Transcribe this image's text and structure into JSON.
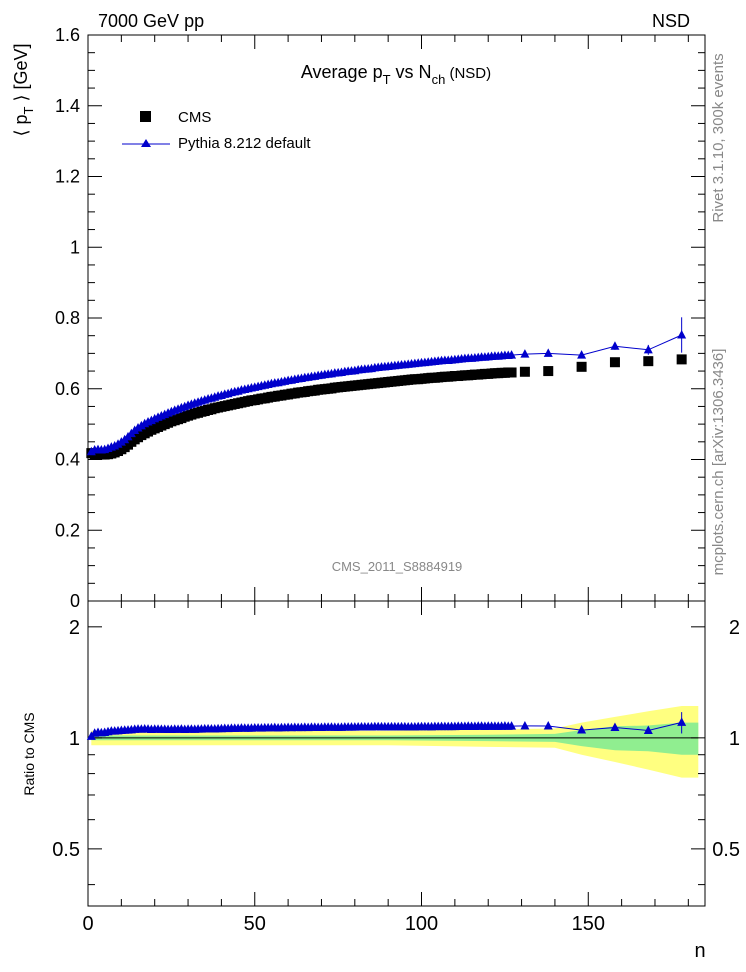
{
  "header": {
    "left": "7000 GeV pp",
    "right": "NSD"
  },
  "side_text": {
    "rivet": "Rivet 3.1.10,  300k events",
    "mcplots": "mcplots.cern.ch [arXiv:1306.3436]"
  },
  "chart_data": [
    {
      "type": "scatter",
      "title_parts": {
        "a": "Average p",
        "b": "T",
        "c": " vs N",
        "d": "ch",
        "e": " (NSD)"
      },
      "ylabel_parts": {
        "a": "⟨ p",
        "b": "T",
        "c": " ⟩ [GeV]"
      },
      "analysis_label": "CMS_2011_S8884919",
      "xlim": [
        0,
        185
      ],
      "ylim": [
        0,
        1.6
      ],
      "xticks": [
        0,
        50,
        100,
        150
      ],
      "yticks": [
        0,
        0.2,
        0.4,
        0.6,
        0.8,
        1,
        1.2,
        1.4,
        1.6
      ],
      "ytick_labels": [
        "0",
        "0.2",
        "0.4",
        "0.6",
        "0.8",
        "1",
        "1.2",
        "1.4",
        "1.6"
      ],
      "legend_position": "top-left",
      "legend": [
        "CMS",
        "Pythia 8.212 default"
      ],
      "series": [
        {
          "name": "CMS",
          "marker": "square",
          "color": "#000000",
          "x": [
            1,
            2,
            3,
            4,
            5,
            6,
            7,
            8,
            9,
            10,
            11,
            12,
            13,
            14,
            15,
            16,
            17,
            18,
            19,
            20,
            21,
            22,
            23,
            24,
            25,
            26,
            27,
            28,
            29,
            30,
            31,
            32,
            33,
            34,
            35,
            36,
            37,
            38,
            39,
            40,
            41,
            42,
            43,
            44,
            45,
            46,
            47,
            48,
            49,
            50,
            51,
            52,
            53,
            54,
            55,
            56,
            57,
            58,
            59,
            60,
            61,
            62,
            63,
            64,
            65,
            66,
            67,
            68,
            69,
            70,
            71,
            72,
            73,
            74,
            75,
            76,
            77,
            78,
            79,
            80,
            81,
            82,
            83,
            84,
            85,
            86,
            87,
            88,
            89,
            90,
            91,
            92,
            93,
            94,
            95,
            96,
            97,
            98,
            99,
            100,
            101,
            102,
            103,
            104,
            105,
            106,
            107,
            108,
            109,
            110,
            111,
            112,
            113,
            114,
            115,
            116,
            117,
            118,
            119,
            120,
            121,
            122,
            123,
            124,
            125,
            126,
            127,
            131,
            138,
            148,
            158,
            168,
            178
          ],
          "y": [
            0.418,
            0.415,
            0.414,
            0.414,
            0.414,
            0.415,
            0.417,
            0.42,
            0.424,
            0.429,
            0.435,
            0.442,
            0.45,
            0.457,
            0.463,
            0.469,
            0.474,
            0.479,
            0.484,
            0.488,
            0.492,
            0.496,
            0.5,
            0.504,
            0.508,
            0.511,
            0.514,
            0.517,
            0.521,
            0.524,
            0.527,
            0.53,
            0.532,
            0.535,
            0.537,
            0.54,
            0.542,
            0.545,
            0.547,
            0.549,
            0.551,
            0.553,
            0.555,
            0.557,
            0.559,
            0.561,
            0.563,
            0.565,
            0.567,
            0.568,
            0.57,
            0.572,
            0.573,
            0.575,
            0.577,
            0.578,
            0.58,
            0.581,
            0.583,
            0.584,
            0.586,
            0.587,
            0.589,
            0.59,
            0.591,
            0.593,
            0.594,
            0.595,
            0.597,
            0.598,
            0.599,
            0.6,
            0.601,
            0.603,
            0.604,
            0.605,
            0.606,
            0.607,
            0.608,
            0.609,
            0.61,
            0.611,
            0.612,
            0.613,
            0.614,
            0.615,
            0.616,
            0.617,
            0.618,
            0.619,
            0.62,
            0.621,
            0.622,
            0.623,
            0.624,
            0.625,
            0.626,
            0.627,
            0.627,
            0.628,
            0.629,
            0.63,
            0.631,
            0.631,
            0.632,
            0.633,
            0.634,
            0.634,
            0.635,
            0.636,
            0.636,
            0.637,
            0.638,
            0.638,
            0.639,
            0.64,
            0.64,
            0.641,
            0.642,
            0.642,
            0.643,
            0.644,
            0.644,
            0.645,
            0.645,
            0.646,
            0.646,
            0.648,
            0.65,
            0.662,
            0.675,
            0.678,
            0.683
          ]
        },
        {
          "name": "Pythia 8.212 default",
          "marker": "triangle",
          "color": "#0000cc",
          "x": [
            1,
            2,
            3,
            4,
            5,
            6,
            7,
            8,
            9,
            10,
            11,
            12,
            13,
            14,
            15,
            16,
            17,
            18,
            19,
            20,
            21,
            22,
            23,
            24,
            25,
            26,
            27,
            28,
            29,
            30,
            31,
            32,
            33,
            34,
            35,
            36,
            37,
            38,
            39,
            40,
            41,
            42,
            43,
            44,
            45,
            46,
            47,
            48,
            49,
            50,
            51,
            52,
            53,
            54,
            55,
            56,
            57,
            58,
            59,
            60,
            61,
            62,
            63,
            64,
            65,
            66,
            67,
            68,
            69,
            70,
            71,
            72,
            73,
            74,
            75,
            76,
            77,
            78,
            79,
            80,
            81,
            82,
            83,
            84,
            85,
            86,
            87,
            88,
            89,
            90,
            91,
            92,
            93,
            94,
            95,
            96,
            97,
            98,
            99,
            100,
            101,
            102,
            103,
            104,
            105,
            106,
            107,
            108,
            109,
            110,
            111,
            112,
            113,
            114,
            115,
            116,
            117,
            118,
            119,
            120,
            121,
            122,
            123,
            124,
            125,
            126,
            127,
            131,
            138,
            148,
            158,
            168,
            178
          ],
          "y": [
            0.422,
            0.427,
            0.428,
            0.427,
            0.428,
            0.431,
            0.435,
            0.438,
            0.443,
            0.449,
            0.456,
            0.464,
            0.473,
            0.482,
            0.489,
            0.495,
            0.501,
            0.506,
            0.51,
            0.515,
            0.519,
            0.523,
            0.527,
            0.531,
            0.535,
            0.539,
            0.542,
            0.546,
            0.549,
            0.553,
            0.556,
            0.559,
            0.562,
            0.565,
            0.568,
            0.571,
            0.573,
            0.576,
            0.579,
            0.581,
            0.584,
            0.586,
            0.589,
            0.591,
            0.593,
            0.596,
            0.598,
            0.6,
            0.602,
            0.604,
            0.606,
            0.608,
            0.61,
            0.612,
            0.614,
            0.616,
            0.617,
            0.619,
            0.621,
            0.623,
            0.624,
            0.626,
            0.628,
            0.629,
            0.631,
            0.632,
            0.634,
            0.635,
            0.637,
            0.638,
            0.64,
            0.641,
            0.642,
            0.644,
            0.645,
            0.646,
            0.648,
            0.649,
            0.65,
            0.651,
            0.653,
            0.654,
            0.655,
            0.656,
            0.657,
            0.659,
            0.66,
            0.661,
            0.662,
            0.663,
            0.664,
            0.665,
            0.666,
            0.667,
            0.668,
            0.669,
            0.67,
            0.671,
            0.672,
            0.673,
            0.674,
            0.675,
            0.676,
            0.677,
            0.678,
            0.679,
            0.68,
            0.68,
            0.681,
            0.682,
            0.683,
            0.684,
            0.685,
            0.686,
            0.686,
            0.687,
            0.688,
            0.689,
            0.689,
            0.69,
            0.691,
            0.692,
            0.692,
            0.693,
            0.694,
            0.694,
            0.695,
            0.698,
            0.7,
            0.695,
            0.72,
            0.71,
            0.752
          ],
          "yerr": [
            0.003,
            0.003,
            0.003,
            0.003,
            0.003,
            0.003,
            0.003,
            0.003,
            0.003,
            0.003,
            0.003,
            0.003,
            0.003,
            0.003,
            0.003,
            0.003,
            0.003,
            0.003,
            0.003,
            0.003,
            0.003,
            0.003,
            0.003,
            0.003,
            0.003,
            0.003,
            0.003,
            0.003,
            0.003,
            0.003,
            0.003,
            0.003,
            0.003,
            0.003,
            0.003,
            0.003,
            0.003,
            0.003,
            0.003,
            0.003,
            0.003,
            0.003,
            0.003,
            0.003,
            0.003,
            0.003,
            0.003,
            0.003,
            0.003,
            0.003,
            0.003,
            0.003,
            0.003,
            0.003,
            0.003,
            0.003,
            0.003,
            0.003,
            0.003,
            0.003,
            0.003,
            0.003,
            0.003,
            0.003,
            0.003,
            0.003,
            0.003,
            0.003,
            0.003,
            0.003,
            0.003,
            0.003,
            0.003,
            0.003,
            0.003,
            0.003,
            0.003,
            0.003,
            0.003,
            0.003,
            0.003,
            0.003,
            0.003,
            0.003,
            0.003,
            0.003,
            0.003,
            0.003,
            0.003,
            0.003,
            0.003,
            0.003,
            0.003,
            0.003,
            0.003,
            0.003,
            0.003,
            0.003,
            0.003,
            0.003,
            0.003,
            0.003,
            0.003,
            0.003,
            0.003,
            0.003,
            0.003,
            0.003,
            0.003,
            0.003,
            0.003,
            0.003,
            0.003,
            0.003,
            0.003,
            0.003,
            0.003,
            0.003,
            0.003,
            0.003,
            0.003,
            0.003,
            0.003,
            0.003,
            0.003,
            0.003,
            0.003,
            0.004,
            0.005,
            0.006,
            0.01,
            0.014,
            0.05
          ]
        }
      ]
    },
    {
      "type": "scatter",
      "ylabel": "Ratio to CMS",
      "xlabel": "n",
      "xlim": [
        0,
        185
      ],
      "ylim": [
        0.35,
        2.35
      ],
      "log_y": true,
      "xticks": [
        0,
        50,
        100,
        150
      ],
      "xtick_labels": [
        "0",
        "50",
        "100",
        "150"
      ],
      "yticks": [
        0.5,
        1,
        2
      ],
      "ytick_labels": [
        "0.5",
        "1",
        "2"
      ],
      "bands": {
        "green": {
          "color": "#90ee90",
          "x": [
            1,
            30,
            60,
            90,
            120,
            140,
            148,
            158,
            168,
            178,
            183
          ],
          "lo": [
            0.985,
            0.985,
            0.985,
            0.985,
            0.98,
            0.975,
            0.95,
            0.925,
            0.92,
            0.9,
            0.9
          ],
          "hi": [
            1.015,
            1.015,
            1.015,
            1.015,
            1.02,
            1.025,
            1.05,
            1.075,
            1.08,
            1.1,
            1.1
          ]
        },
        "yellow": {
          "color": "#ffff80",
          "x": [
            1,
            30,
            60,
            90,
            120,
            140,
            148,
            158,
            168,
            178,
            183
          ],
          "lo": [
            0.955,
            0.955,
            0.955,
            0.955,
            0.945,
            0.94,
            0.9,
            0.86,
            0.82,
            0.78,
            0.78
          ],
          "hi": [
            1.045,
            1.045,
            1.045,
            1.045,
            1.055,
            1.06,
            1.1,
            1.14,
            1.18,
            1.22,
            1.22
          ]
        }
      },
      "ratio_series": {
        "name": "Pythia 8.212 default",
        "color": "#0000cc",
        "note": "Pythia / CMS computed from panel-1 series"
      }
    }
  ]
}
